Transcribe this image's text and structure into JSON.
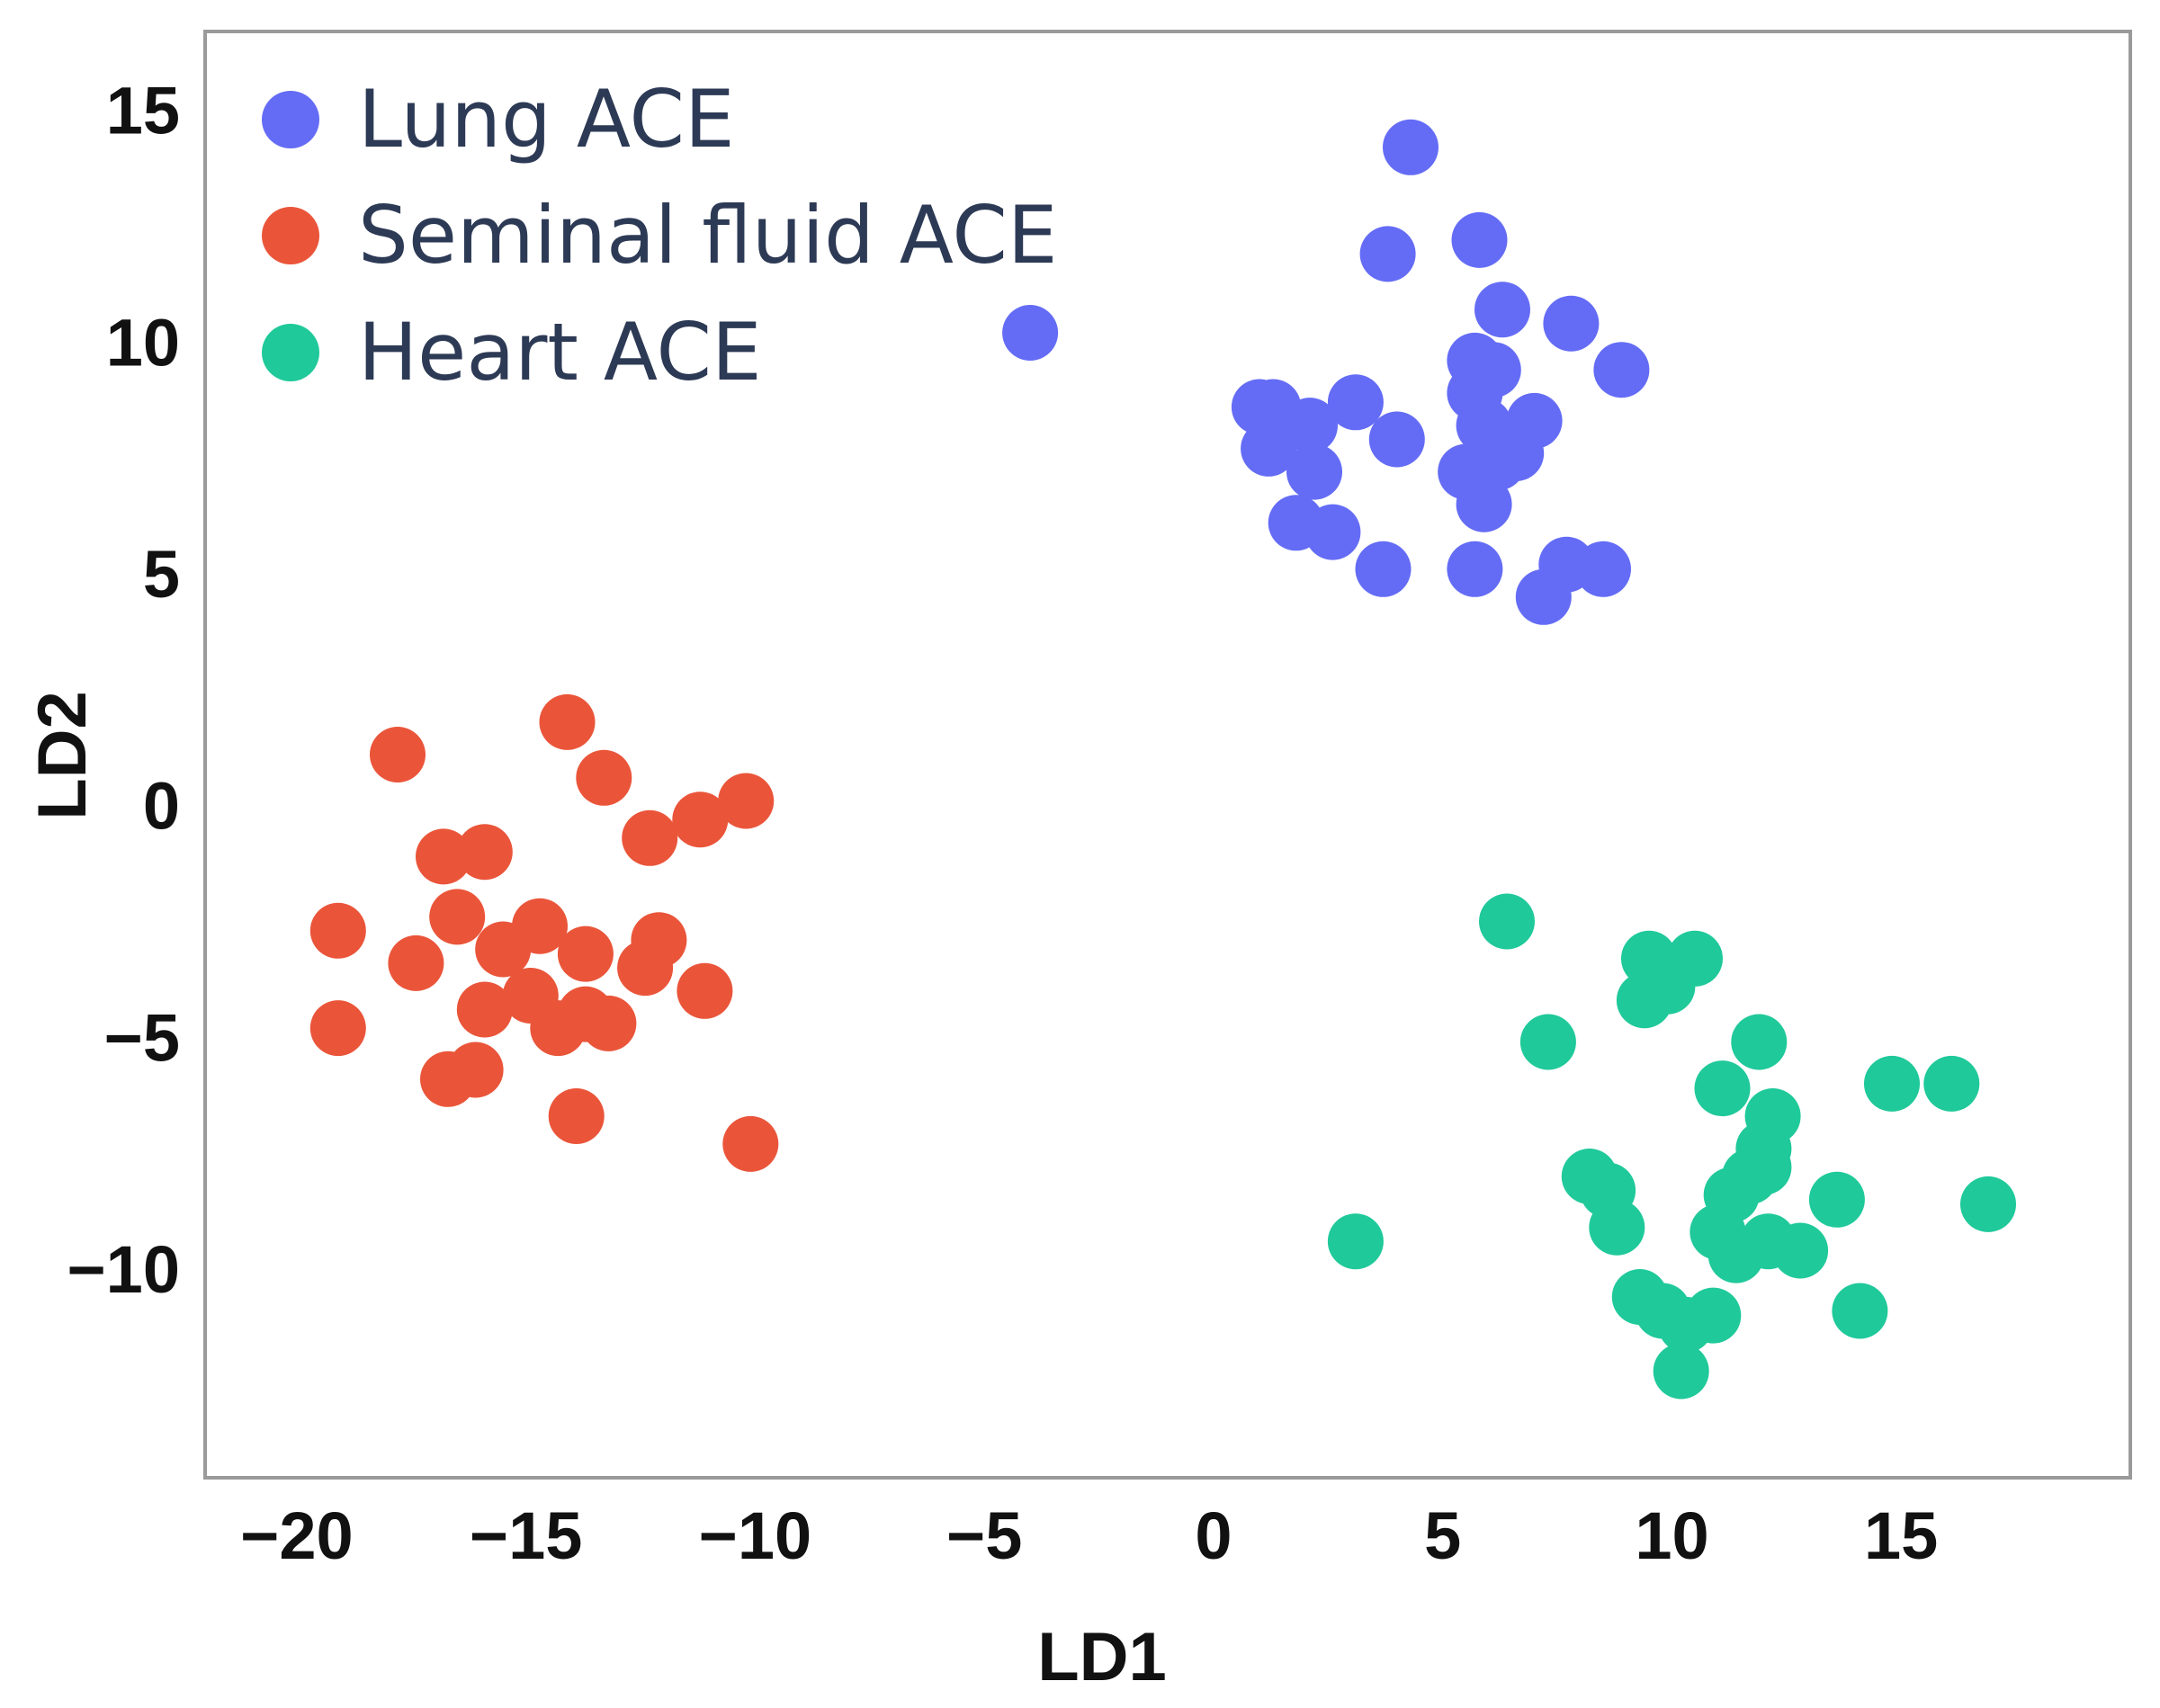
{
  "chart_data": {
    "type": "scatter",
    "title": "",
    "xlabel": "LD1",
    "ylabel": "LD2",
    "xlim": [
      -22,
      20
    ],
    "ylim": [
      -14.5,
      16.7
    ],
    "x_ticks": [
      -20,
      -15,
      -10,
      -5,
      0,
      5,
      10,
      15
    ],
    "y_ticks": [
      15,
      10,
      5,
      0,
      -5,
      -10
    ],
    "x_tick_labels": [
      "−20",
      "−15",
      "−10",
      "−5",
      "0",
      "5",
      "10",
      "15"
    ],
    "y_tick_labels": [
      "15",
      "10",
      "5",
      "0",
      "−5",
      "−10"
    ],
    "grid": false,
    "legend_position": "top-left",
    "series": [
      {
        "name": "Lung ACE",
        "color": "#646cf5",
        "points": [
          [
            4.3,
            14.2
          ],
          [
            3.8,
            11.9
          ],
          [
            5.8,
            12.2
          ],
          [
            -4,
            10.2
          ],
          [
            6.3,
            10.7
          ],
          [
            7.8,
            10.4
          ],
          [
            8.9,
            9.4
          ],
          [
            1,
            8.6
          ],
          [
            1.3,
            8.6
          ],
          [
            2.1,
            8.2
          ],
          [
            3.1,
            8.7
          ],
          [
            5.7,
            8.9
          ],
          [
            6.1,
            9.4
          ],
          [
            7,
            8.3
          ],
          [
            1.2,
            7.7
          ],
          [
            2.2,
            7.2
          ],
          [
            4,
            7.9
          ],
          [
            5.5,
            7.2
          ],
          [
            6.2,
            7.4
          ],
          [
            5.9,
            6.5
          ],
          [
            6.6,
            7.6
          ],
          [
            5.9,
            8.2
          ],
          [
            5.7,
            9.6
          ],
          [
            1.8,
            6.1
          ],
          [
            2.6,
            5.9
          ],
          [
            3.7,
            5.1
          ],
          [
            5.7,
            5.1
          ],
          [
            7.7,
            5.2
          ],
          [
            8.5,
            5.1
          ],
          [
            7.2,
            4.5
          ]
        ]
      },
      {
        "name": "Seminal fluid ACE",
        "color": "#ea553a",
        "points": [
          [
            -17.8,
            1.1
          ],
          [
            -14.1,
            1.8
          ],
          [
            -13.3,
            0.6
          ],
          [
            -10.2,
            0.1
          ],
          [
            -11.2,
            -0.3
          ],
          [
            -12.3,
            -0.7
          ],
          [
            -16.8,
            -1.1
          ],
          [
            -15.9,
            -1
          ],
          [
            -19.1,
            -2.7
          ],
          [
            -17.4,
            -3.4
          ],
          [
            -16.5,
            -2.4
          ],
          [
            -15.5,
            -3.1
          ],
          [
            -14.7,
            -2.6
          ],
          [
            -13.7,
            -3.2
          ],
          [
            -12.1,
            -2.9
          ],
          [
            -12.4,
            -3.5
          ],
          [
            -15.9,
            -4.4
          ],
          [
            -14.9,
            -4.1
          ],
          [
            -14.3,
            -4.8
          ],
          [
            -13.7,
            -4.5
          ],
          [
            -13.2,
            -4.7
          ],
          [
            -11.1,
            -4
          ],
          [
            -19.1,
            -4.8
          ],
          [
            -16.7,
            -5.9
          ],
          [
            -16.1,
            -5.7
          ],
          [
            -13.9,
            -6.7
          ],
          [
            -10.1,
            -7.3
          ]
        ]
      },
      {
        "name": "Heart ACE",
        "color": "#1fc99a",
        "points": [
          [
            6.4,
            -2.5
          ],
          [
            9.5,
            -3.3
          ],
          [
            10.5,
            -3.3
          ],
          [
            9.4,
            -4.2
          ],
          [
            9.9,
            -3.9
          ],
          [
            7.3,
            -5.1
          ],
          [
            11.9,
            -5.1
          ],
          [
            11.1,
            -6.1
          ],
          [
            14.8,
            -6
          ],
          [
            16.1,
            -6
          ],
          [
            12.2,
            -6.7
          ],
          [
            12,
            -7.4
          ],
          [
            8.2,
            -8
          ],
          [
            8.6,
            -8.3
          ],
          [
            11.3,
            -8.4
          ],
          [
            11.7,
            -8
          ],
          [
            12,
            -7.8
          ],
          [
            13.6,
            -8.5
          ],
          [
            16.9,
            -8.6
          ],
          [
            3.1,
            -9.4
          ],
          [
            8.8,
            -9.1
          ],
          [
            11,
            -9.2
          ],
          [
            11.4,
            -9.7
          ],
          [
            12.1,
            -9.4
          ],
          [
            12.8,
            -9.6
          ],
          [
            9.3,
            -10.6
          ],
          [
            9.8,
            -10.9
          ],
          [
            10.3,
            -11.2
          ],
          [
            10.9,
            -11
          ],
          [
            14.1,
            -10.9
          ],
          [
            10.2,
            -12.2
          ]
        ]
      }
    ]
  }
}
